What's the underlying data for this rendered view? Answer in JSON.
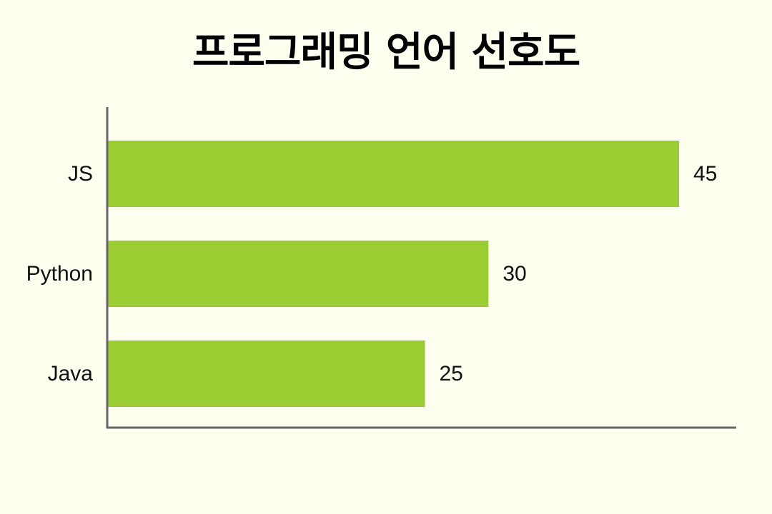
{
  "chart_data": {
    "type": "bar",
    "orientation": "horizontal",
    "title": "프로그래밍 언어 선호도",
    "categories": [
      "JS",
      "Python",
      "Java"
    ],
    "values": [
      45,
      30,
      25
    ],
    "xlim": [
      0,
      50
    ],
    "grid": false,
    "legend": "none",
    "bar_color": "#9ACD32",
    "axis_color": "#666666"
  }
}
